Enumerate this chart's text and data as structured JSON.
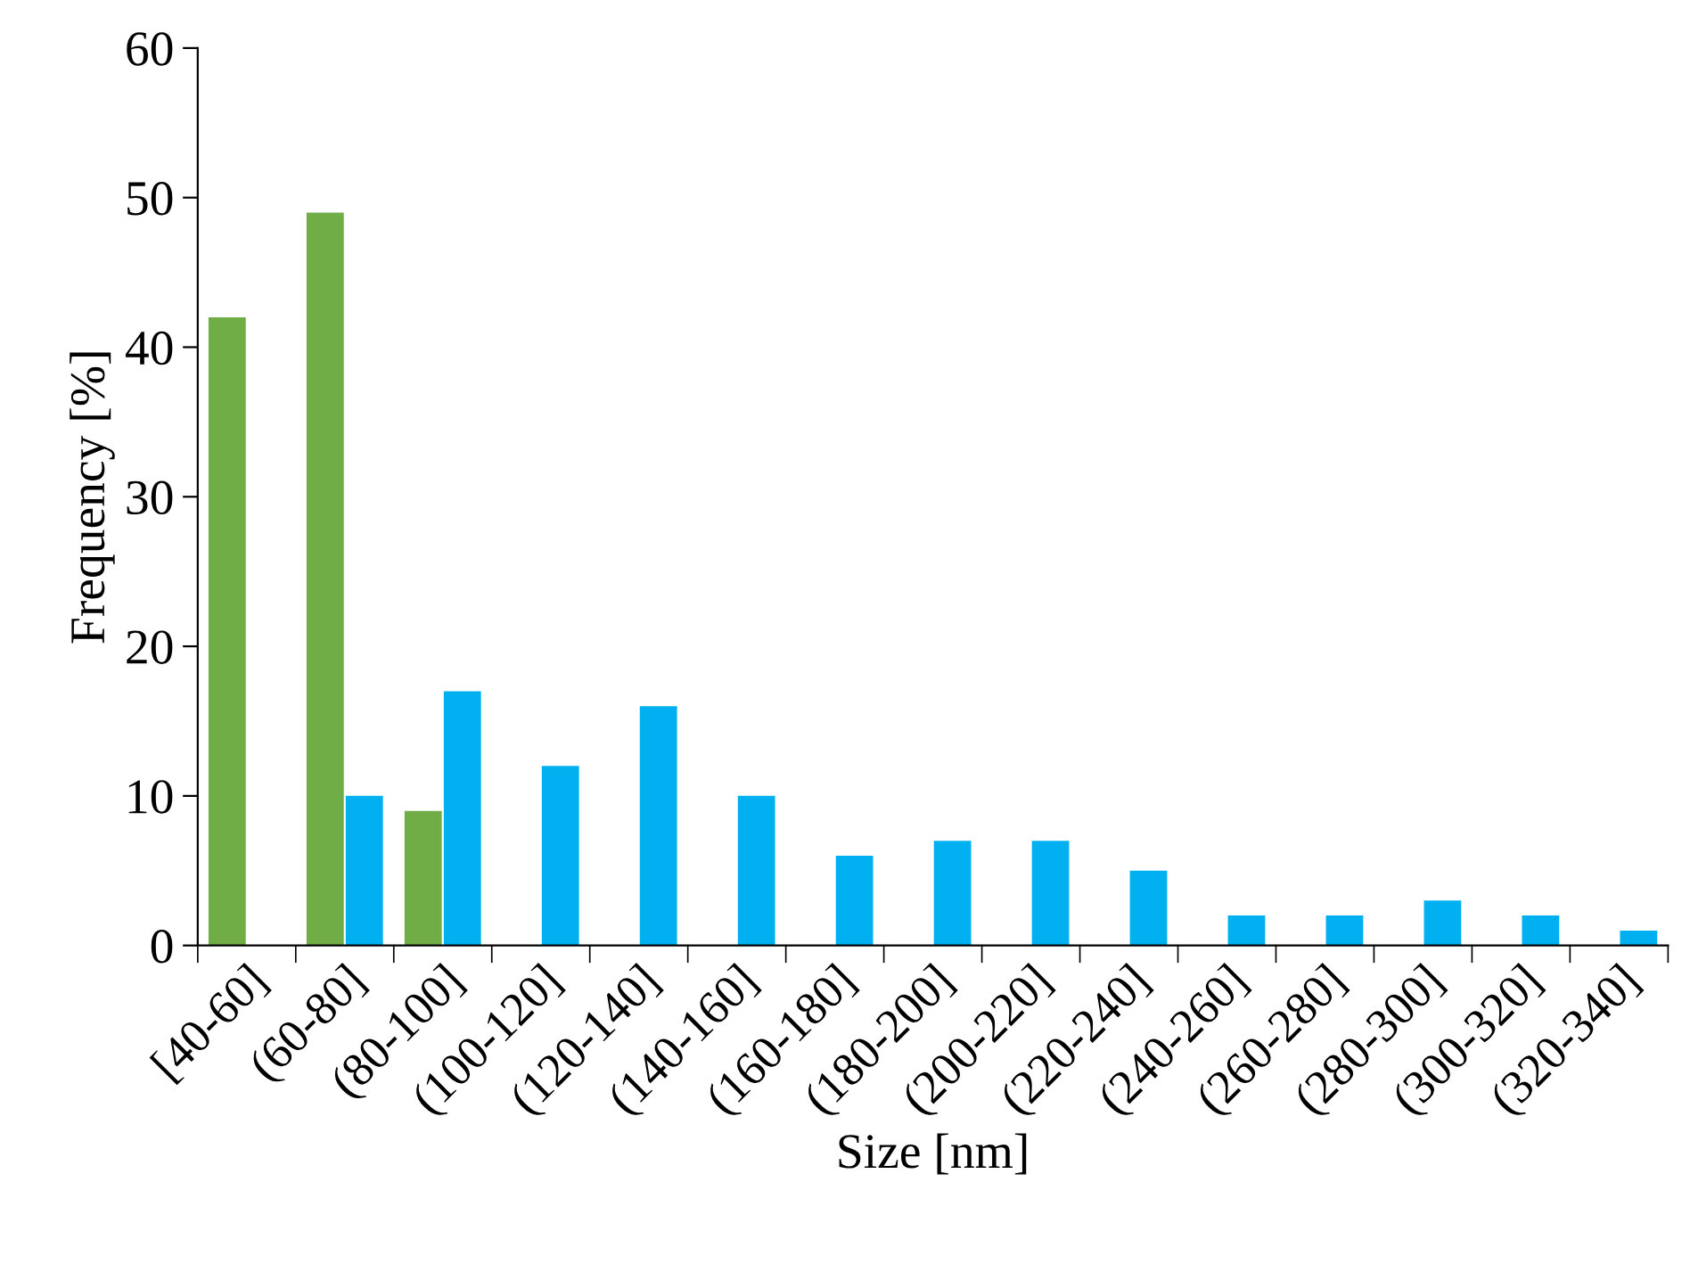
{
  "chart_data": {
    "type": "bar",
    "xlabel": "Size [nm]",
    "ylabel": "Frequency [%]",
    "categories": [
      "[40-60]",
      "(60-80]",
      "(80-100]",
      "(100-120]",
      "(120-140]",
      "(140-160]",
      "(160-180]",
      "(180-200]",
      "(200-220]",
      "(220-240]",
      "(240-260]",
      "(260-280]",
      "(280-300]",
      "(300-320]",
      "(320-340]"
    ],
    "series": [
      {
        "color": "#70ad47",
        "values": [
          42,
          49,
          9,
          null,
          null,
          null,
          null,
          null,
          null,
          null,
          null,
          null,
          null,
          null,
          null
        ]
      },
      {
        "color": "#00b0f0",
        "values": [
          null,
          10,
          17,
          12,
          16,
          10,
          6,
          7,
          7,
          5,
          2,
          2,
          3,
          2,
          1
        ]
      }
    ],
    "ylim": [
      0,
      60
    ],
    "yticks": [
      0,
      10,
      20,
      30,
      40,
      50,
      60
    ],
    "grid": false,
    "legend": false
  }
}
